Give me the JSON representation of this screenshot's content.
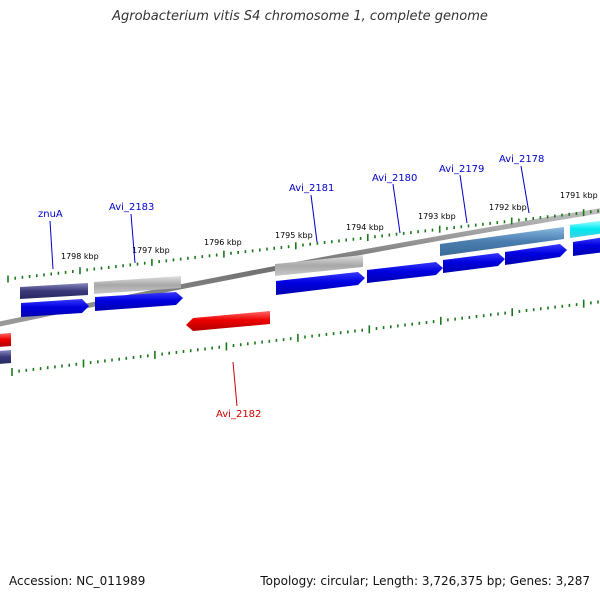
{
  "title": "Agrobacterium vitis S4 chromosome 1, complete genome",
  "footer": {
    "accession": "Accession: NC_011989",
    "info": "Topology: circular; Length: 3,726,375 bp; Genes: 3,287"
  },
  "kbp_labels": [
    "1798 kbp",
    "1797 kbp",
    "1796 kbp",
    "1795 kbp",
    "1794 kbp",
    "1793 kbp",
    "1792 kbp",
    "1791 kbp"
  ],
  "genes": [
    {
      "name": "znuA",
      "color": "#0000cc"
    },
    {
      "name": "Avi_2183",
      "color": "#0000cc"
    },
    {
      "name": "Avi_2181",
      "color": "#0000cc"
    },
    {
      "name": "Avi_2180",
      "color": "#0000cc"
    },
    {
      "name": "Avi_2179",
      "color": "#0000cc"
    },
    {
      "name": "Avi_2178",
      "color": "#0000cc"
    },
    {
      "name": "Avi_2182",
      "color": "#cc0000"
    }
  ],
  "colors": {
    "backbone": "#808080",
    "cds_forward": "#0000e0",
    "cds_reverse": "#ee0000",
    "tick": "#1a7a1a"
  }
}
